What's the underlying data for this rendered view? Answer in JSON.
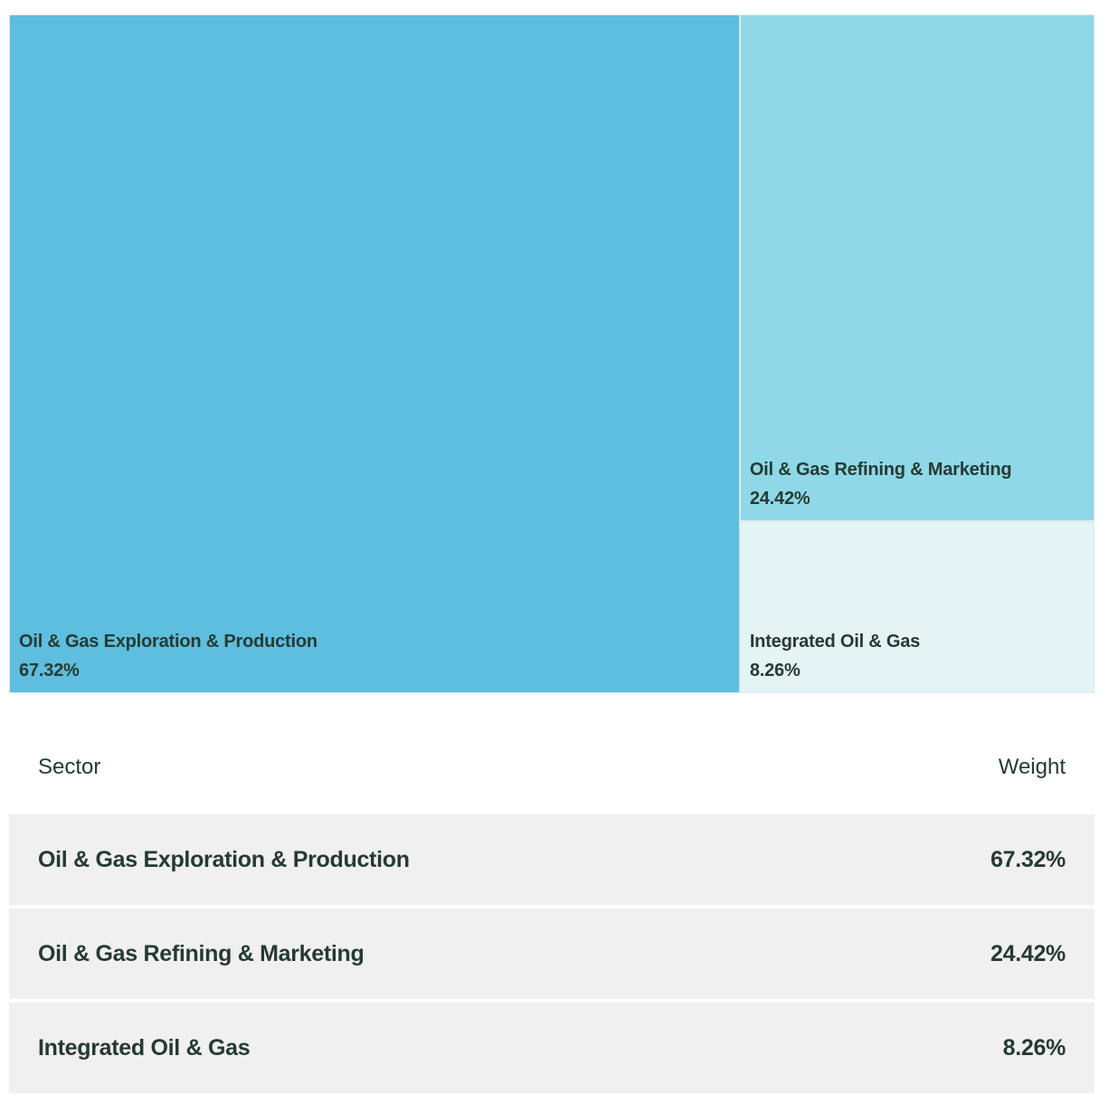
{
  "chart_data": {
    "type": "treemap",
    "items": [
      {
        "label": "Oil & Gas Exploration & Production",
        "value": 67.32,
        "display": "67.32%",
        "color": "#5dbede"
      },
      {
        "label": "Oil & Gas Refining & Marketing",
        "value": 24.42,
        "display": "24.42%",
        "color": "#8fd8e8"
      },
      {
        "label": "Integrated Oil & Gas",
        "value": 8.26,
        "display": "8.26%",
        "color": "#e4f3f4"
      }
    ]
  },
  "table": {
    "headers": {
      "sector": "Sector",
      "weight": "Weight"
    },
    "rows": [
      {
        "sector": "Oil & Gas Exploration & Production",
        "weight": "67.32%"
      },
      {
        "sector": "Oil & Gas Refining & Marketing",
        "weight": "24.42%"
      },
      {
        "sector": "Integrated Oil & Gas",
        "weight": "8.26%"
      }
    ]
  }
}
